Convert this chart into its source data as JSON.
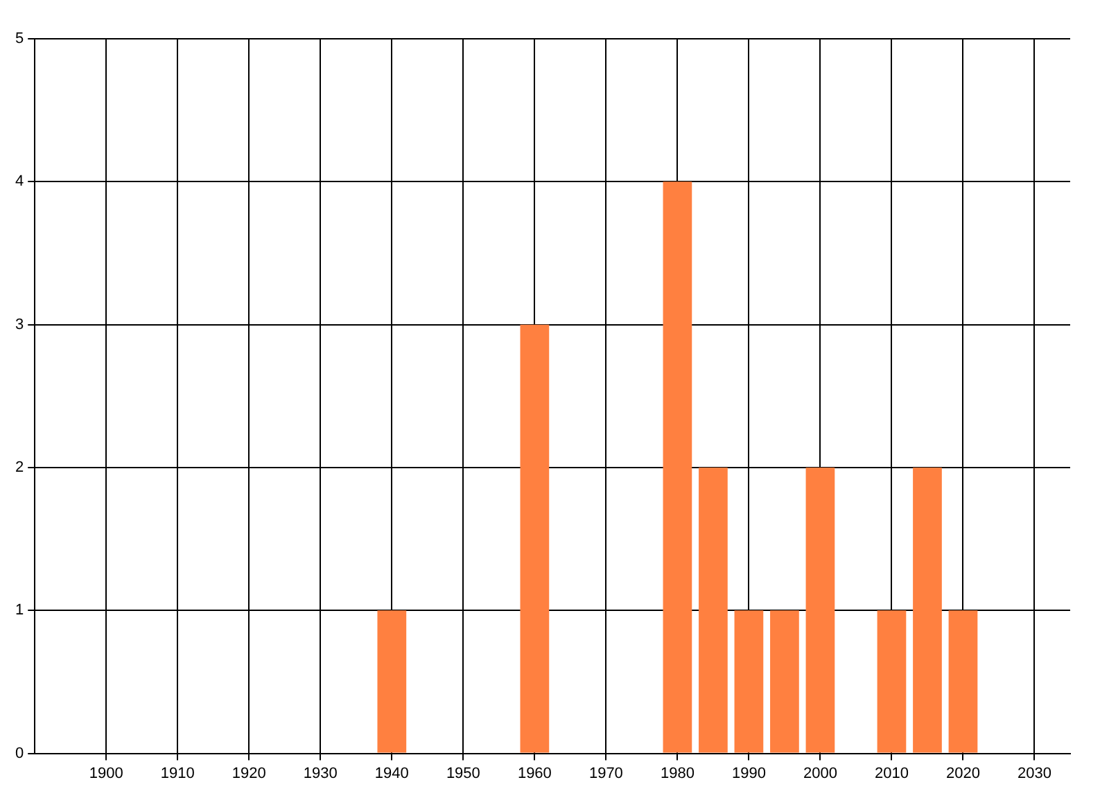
{
  "chart_data": {
    "type": "bar",
    "x": [
      1940,
      1960,
      1980,
      1985,
      1990,
      1995,
      2000,
      2010,
      2015,
      2020
    ],
    "values": [
      1,
      3,
      4,
      2,
      1,
      1,
      2,
      1,
      2,
      1
    ],
    "color": "#ff8040",
    "xlim": [
      1890,
      2035
    ],
    "xticks": [
      1900,
      1910,
      1920,
      1930,
      1940,
      1950,
      1960,
      1970,
      1980,
      1990,
      2000,
      2010,
      2020,
      2030
    ],
    "ylim": [
      0,
      5
    ],
    "yticks": [
      0,
      1,
      2,
      3,
      4,
      5
    ],
    "grid": true
  }
}
